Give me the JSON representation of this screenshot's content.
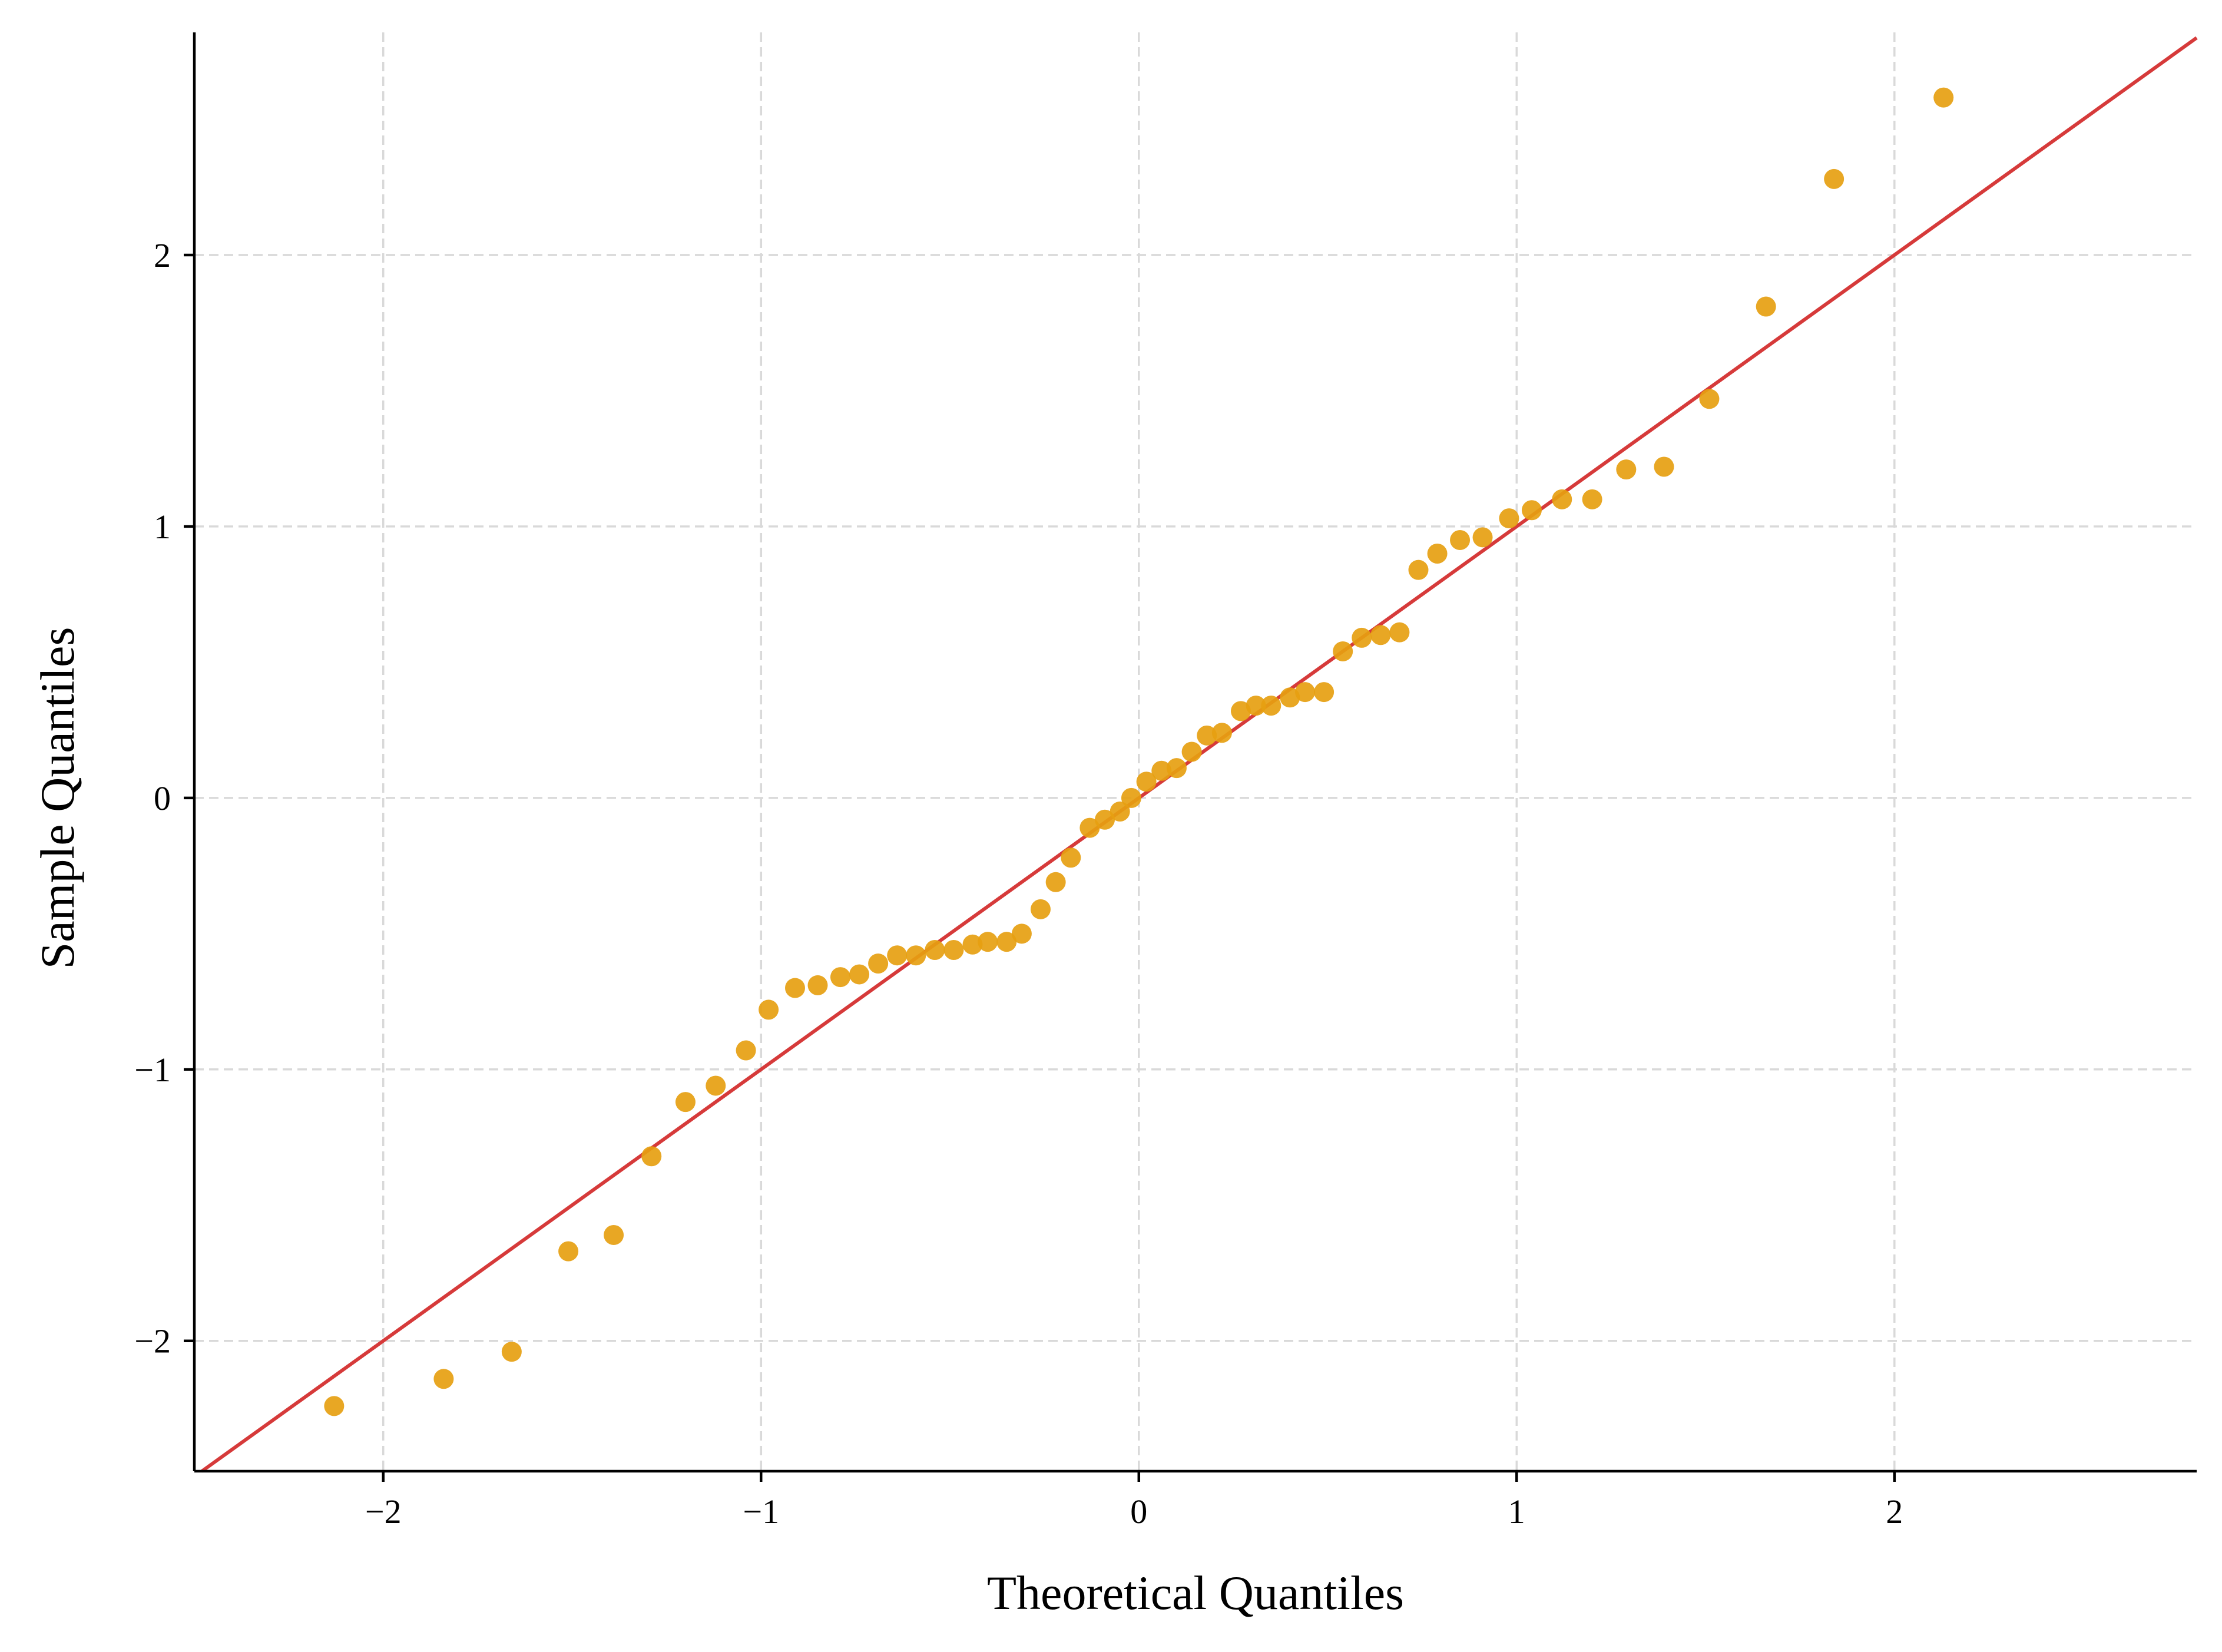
{
  "chart_data": {
    "type": "scatter",
    "title": "",
    "xlabel": "Theoretical Quantiles",
    "ylabel": "Sample Quantiles",
    "xlim": [
      -2.5,
      2.8
    ],
    "ylim": [
      -2.48,
      2.82
    ],
    "grid": true,
    "x_ticks": [
      -2,
      -1,
      0,
      1,
      2
    ],
    "y_ticks": [
      -2,
      -1,
      0,
      1,
      2
    ],
    "x_tick_labels": [
      "−2",
      "−1",
      "0",
      "1",
      "2"
    ],
    "y_tick_labels": [
      "−2",
      "−1",
      "0",
      "1",
      "2"
    ],
    "colors": {
      "points": "#E6A011",
      "reference_line": "#D63A3A",
      "grid": "#d9d9d9"
    },
    "reference_line": {
      "slope": 1,
      "intercept": 0
    },
    "series": [
      {
        "x": [
          -2.13,
          -1.84,
          -1.66,
          -1.51,
          -1.39,
          -1.29,
          -1.2,
          -1.12,
          -1.04,
          -0.98,
          -0.91,
          -0.85,
          -0.79,
          -0.74,
          -0.69,
          -0.64,
          -0.59,
          -0.54,
          -0.49,
          -0.44,
          -0.4,
          -0.35,
          -0.31,
          -0.26,
          -0.22,
          -0.18,
          -0.13,
          -0.09,
          -0.05,
          -0.02,
          0.02,
          0.06,
          0.1,
          0.14,
          0.18,
          0.22,
          0.27,
          0.31,
          0.35,
          0.4,
          0.44,
          0.49,
          0.54,
          0.59,
          0.64,
          0.69,
          0.74,
          0.79,
          0.85,
          0.91,
          0.98,
          1.04,
          1.12,
          1.2,
          1.29,
          1.39,
          1.51,
          1.66,
          1.84,
          2.13
        ],
        "y": [
          -2.24,
          -2.14,
          -2.04,
          -1.67,
          -1.61,
          -1.32,
          -1.12,
          -1.06,
          -0.93,
          -0.78,
          -0.7,
          -0.69,
          -0.66,
          -0.65,
          -0.61,
          -0.58,
          -0.58,
          -0.56,
          -0.56,
          -0.54,
          -0.53,
          -0.53,
          -0.5,
          -0.41,
          -0.31,
          -0.22,
          -0.11,
          -0.08,
          -0.05,
          0.0,
          0.06,
          0.1,
          0.11,
          0.17,
          0.23,
          0.24,
          0.32,
          0.34,
          0.34,
          0.37,
          0.39,
          0.39,
          0.54,
          0.59,
          0.6,
          0.61,
          0.84,
          0.9,
          0.95,
          0.96,
          1.03,
          1.06,
          1.1,
          1.1,
          1.21,
          1.22,
          1.47,
          1.81,
          2.28,
          2.58
        ]
      }
    ]
  }
}
